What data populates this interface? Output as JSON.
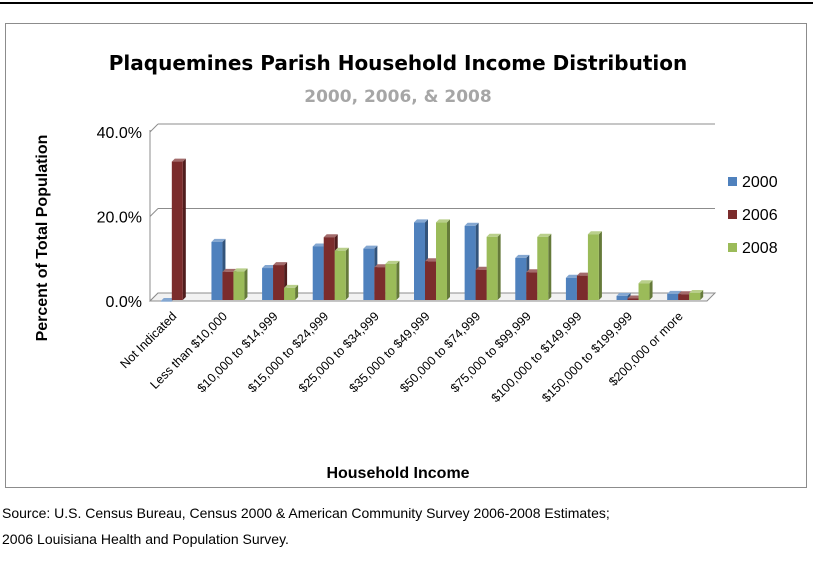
{
  "source_note": {
    "line1": "Source: U.S. Census Bureau, Census 2000 & American Community Survey 2006-2008 Estimates;",
    "line2": "2006 Louisiana Health and Population Survey."
  },
  "chart_data": {
    "type": "bar",
    "title": "Plaquemines Parish Household Income Distribution",
    "subtitle": "2000, 2006, & 2008",
    "xlabel": "Household Income",
    "ylabel": "Percent of Total Population",
    "ylim": [
      0,
      40
    ],
    "yticks": [
      "0.0%",
      "20.0%",
      "40.0%"
    ],
    "ytick_values": [
      0,
      20,
      40
    ],
    "grid": true,
    "legend_position": "right",
    "categories": [
      "Not Indicated",
      "Less than $10,000",
      "$10,000 to $14,999",
      "$15,000 to $24,999",
      "$25,000 to $34,999",
      "$35,000 to $49,999",
      "$50,000 to $74,999",
      "$75,000 to $99,999",
      "$100,000 to $149,999",
      "$150,000 to $199,999",
      "$200,000 or more"
    ],
    "series": [
      {
        "name": "2000",
        "color": "#4f81bd",
        "values": [
          0.0,
          14.0,
          7.8,
          12.9,
          12.4,
          18.6,
          17.8,
          10.2,
          5.5,
          1.2,
          1.7
        ]
      },
      {
        "name": "2006",
        "color": "#7b2c2c",
        "values": [
          33.0,
          6.9,
          8.5,
          15.1,
          8.0,
          9.4,
          7.4,
          6.8,
          6.0,
          0.6,
          1.6
        ]
      },
      {
        "name": "2008",
        "color": "#9bbb59",
        "values": [
          null,
          7.0,
          3.1,
          11.9,
          8.8,
          18.6,
          15.2,
          15.2,
          15.8,
          4.2,
          1.9
        ]
      }
    ]
  }
}
